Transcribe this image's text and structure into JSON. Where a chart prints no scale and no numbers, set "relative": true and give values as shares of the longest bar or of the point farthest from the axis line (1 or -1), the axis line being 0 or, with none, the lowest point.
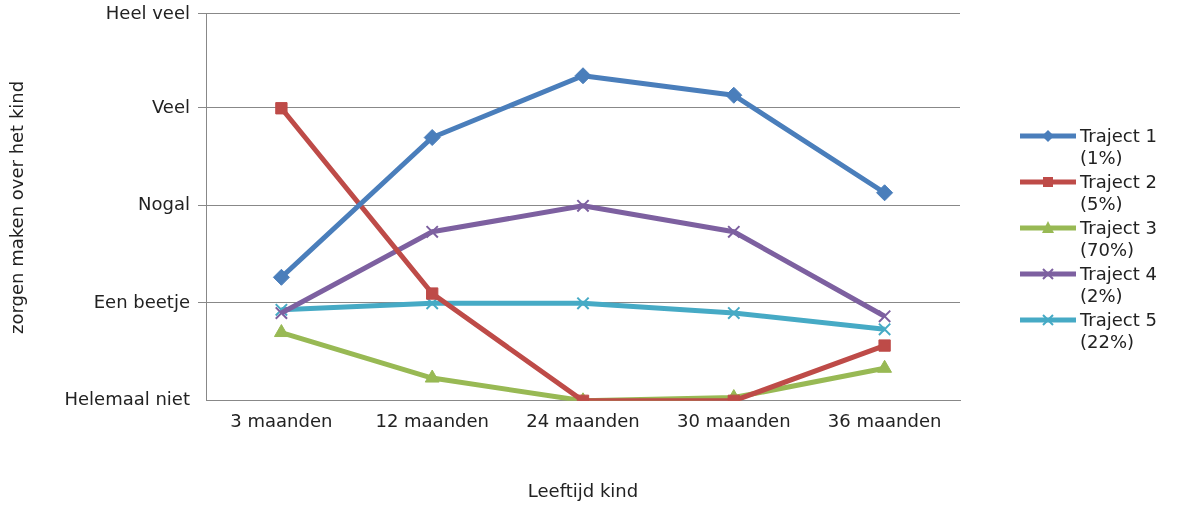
{
  "chart_data": {
    "type": "line",
    "xlabel": "Leeftijd kind",
    "relative": true,
    "categories": [
      "3 maanden",
      "12 maanden",
      "24 maanden",
      "30 maanden",
      "36 maanden"
    ],
    "series": [
      {
        "name": "Traject 1 (1%)",
        "color": "#4a7ebb",
        "marker": "diamond",
        "values": [
          0.38,
          0.81,
          1,
          0.94,
          0.64
        ]
      },
      {
        "name": "Traject 2 (5%)",
        "color": "#be4b48",
        "marker": "square",
        "values": [
          0.9,
          0.33,
          0,
          0,
          0.17
        ]
      },
      {
        "name": "Traject 3 (70%)",
        "color": "#98b954",
        "marker": "triangle",
        "values": [
          0.21,
          0.07,
          0,
          0.01,
          0.1
        ]
      },
      {
        "name": "Traject 4 (2%)",
        "color": "#7d60a0",
        "marker": "cross",
        "values": [
          0.27,
          0.52,
          0.6,
          0.52,
          0.26
        ]
      },
      {
        "name": "Traject 5 (22%)",
        "color": "#46aac5",
        "marker": "cross",
        "values": [
          0.28,
          0.3,
          0.3,
          0.27,
          0.22
        ]
      }
    ],
    "annotations": [
      "Helemaal niet",
      "zorgen maken over het kind"
    ],
    "ref_lines": [
      {
        "axis": "y",
        "value": 0.3,
        "label": "Een beetje"
      },
      {
        "axis": "y",
        "value": 0.6,
        "label": "Nogal"
      },
      {
        "axis": "y",
        "value": 0.9,
        "label": "Veel"
      },
      {
        "axis": "y",
        "value": 1.19,
        "label": "Heel veel"
      }
    ],
    "legend": "right"
  }
}
